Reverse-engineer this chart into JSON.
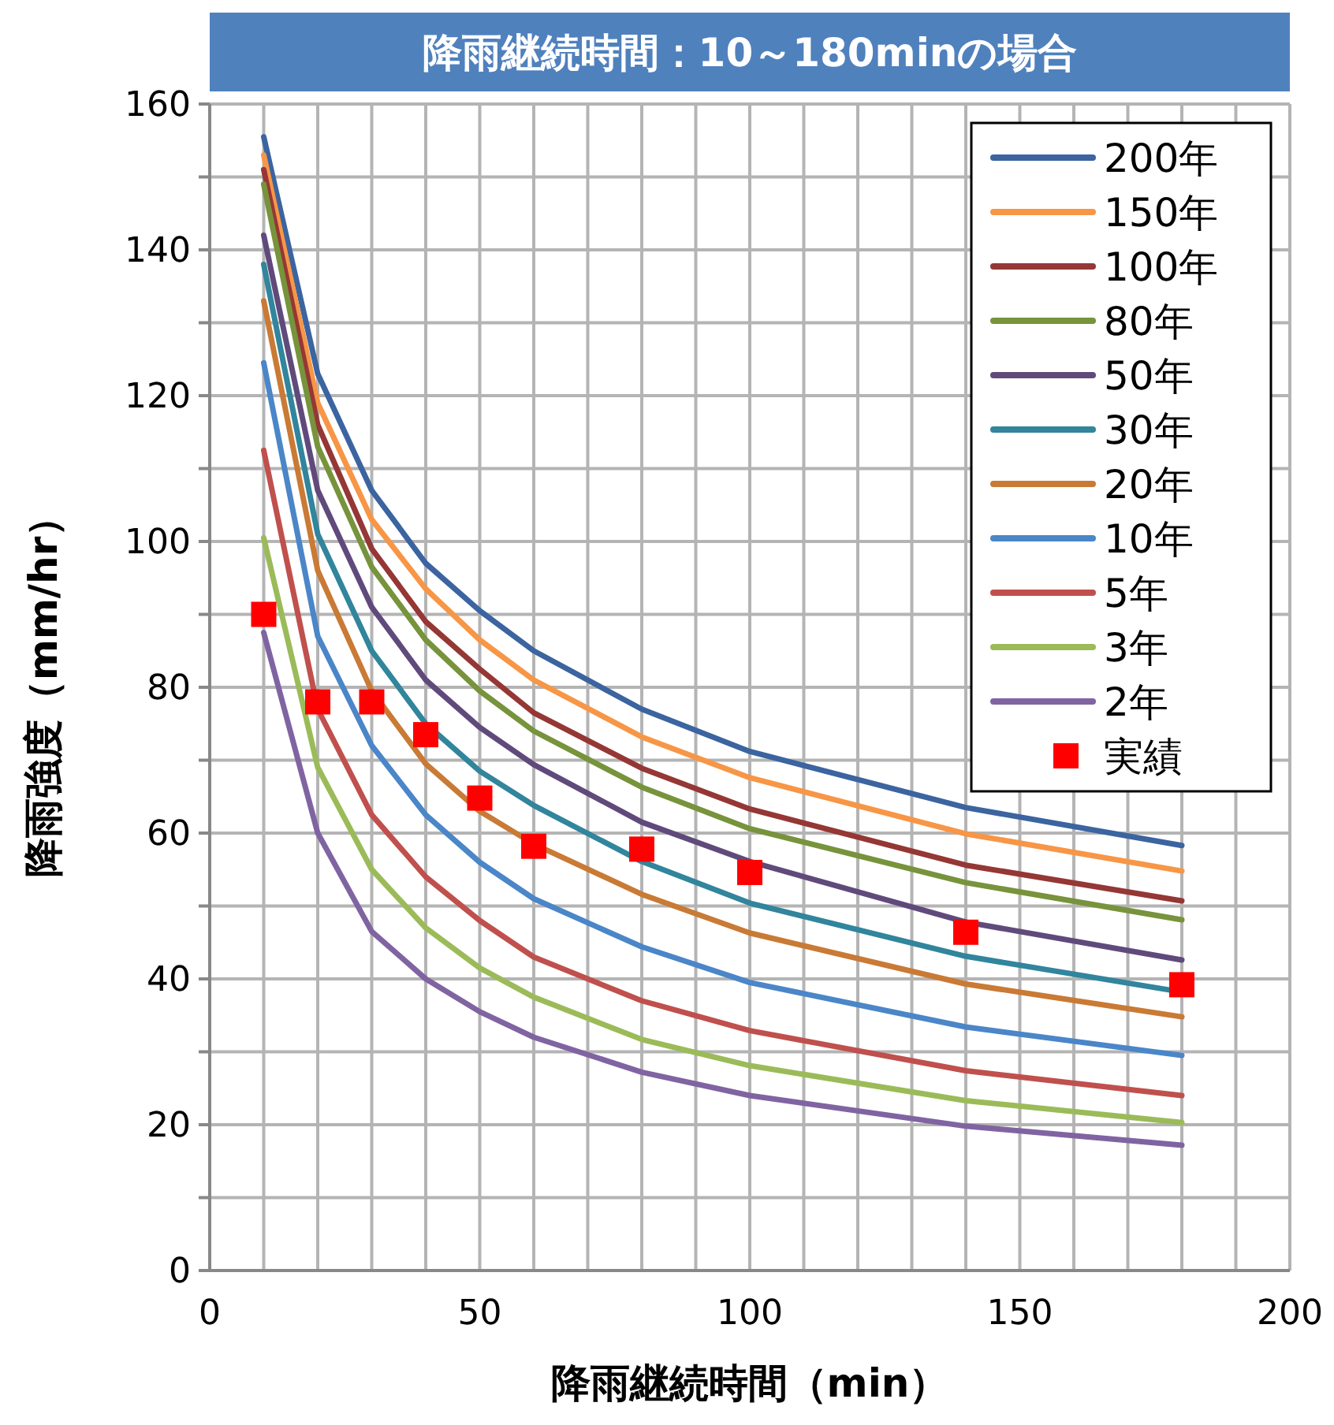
{
  "chart_data": {
    "type": "line",
    "title": "降雨継続時間：10～180minの場合",
    "xlabel": "降雨継続時間（min）",
    "ylabel": "降雨強度（mm/hr）",
    "x": [
      10,
      20,
      30,
      40,
      50,
      60,
      80,
      100,
      140,
      180
    ],
    "xlim": [
      0,
      200
    ],
    "xticks": [
      0,
      {
        "value": 10,
        "label": null
      },
      {
        "value": 20,
        "label": null
      },
      {
        "value": 30,
        "label": null
      },
      {
        "value": 40,
        "label": null
      },
      50,
      {
        "value": 60,
        "label": null
      },
      {
        "value": 70,
        "label": null
      },
      {
        "value": 80,
        "label": null
      },
      {
        "value": 90,
        "label": null
      },
      100,
      {
        "value": 110,
        "label": null
      },
      {
        "value": 120,
        "label": null
      },
      {
        "value": 130,
        "label": null
      },
      {
        "value": 140,
        "label": null
      },
      150,
      {
        "value": 160,
        "label": null
      },
      {
        "value": 170,
        "label": null
      },
      {
        "value": 180,
        "label": null
      },
      {
        "value": 190,
        "label": null
      },
      200
    ],
    "ylim": [
      0,
      160
    ],
    "yticks": [
      0,
      {
        "value": 10,
        "label": null
      },
      20,
      {
        "value": 30,
        "label": null
      },
      40,
      {
        "value": 50,
        "label": null
      },
      60,
      {
        "value": 70,
        "label": null
      },
      80,
      {
        "value": 90,
        "label": null
      },
      100,
      {
        "value": 110,
        "label": null
      },
      120,
      {
        "value": 130,
        "label": null
      },
      140,
      {
        "value": 150,
        "label": null
      },
      160
    ],
    "grid": true,
    "legend": "top right",
    "line_style": "solid",
    "marker": "none",
    "series": [
      {
        "name": "200年",
        "color": "#3b64a0",
        "values": [
          155.5,
          123,
          107,
          97,
          90.5,
          85,
          77,
          71.2,
          63.5,
          58.3
        ]
      },
      {
        "name": "150年",
        "color": "#f79646",
        "values": [
          153,
          119,
          103,
          93.5,
          86.5,
          81,
          73.2,
          67.6,
          59.9,
          54.8
        ]
      },
      {
        "name": "100年",
        "color": "#953735",
        "values": [
          151,
          116,
          99,
          89,
          82.5,
          76.5,
          68.9,
          63.3,
          55.6,
          50.7
        ]
      },
      {
        "name": "80年",
        "color": "#77933c",
        "values": [
          149,
          113,
          96.5,
          86.5,
          79.5,
          74,
          66.3,
          60.6,
          53.2,
          48.1
        ]
      },
      {
        "name": "50年",
        "color": "#604a7b",
        "values": [
          142,
          107,
          91,
          81,
          74.5,
          69.4,
          61.5,
          56.1,
          47.8,
          42.6
        ]
      },
      {
        "name": "30年",
        "color": "#31859c",
        "values": [
          138,
          101,
          85,
          75,
          68.5,
          63.8,
          56.1,
          50.4,
          43.1,
          38.2
        ]
      },
      {
        "name": "20年",
        "color": "#c97a35",
        "values": [
          133,
          96,
          79.5,
          69.5,
          63,
          58.5,
          51.6,
          46.3,
          39.3,
          34.8
        ]
      },
      {
        "name": "10年",
        "color": "#4a86c8",
        "values": [
          124.5,
          87,
          72,
          62.5,
          56,
          51,
          44.4,
          39.5,
          33.4,
          29.5
        ]
      },
      {
        "name": "5年",
        "color": "#c0504d",
        "values": [
          112.5,
          77,
          62.5,
          54,
          48,
          43,
          37,
          32.9,
          27.4,
          24
        ]
      },
      {
        "name": "3年",
        "color": "#9bbb59",
        "values": [
          100.5,
          69,
          55,
          47,
          41.5,
          37.5,
          31.7,
          28.1,
          23.3,
          20.3
        ]
      },
      {
        "name": "2年",
        "color": "#8064a2",
        "values": [
          87.5,
          60,
          46.5,
          40,
          35.5,
          32,
          27.2,
          24,
          19.8,
          17.2
        ]
      },
      {
        "name": "実績",
        "type": "scatter",
        "marker": "square",
        "color": "#ff0000",
        "values": [
          90,
          78,
          78,
          73.5,
          64.8,
          58.2,
          57.8,
          54.6,
          46.4,
          39.2
        ]
      }
    ]
  }
}
